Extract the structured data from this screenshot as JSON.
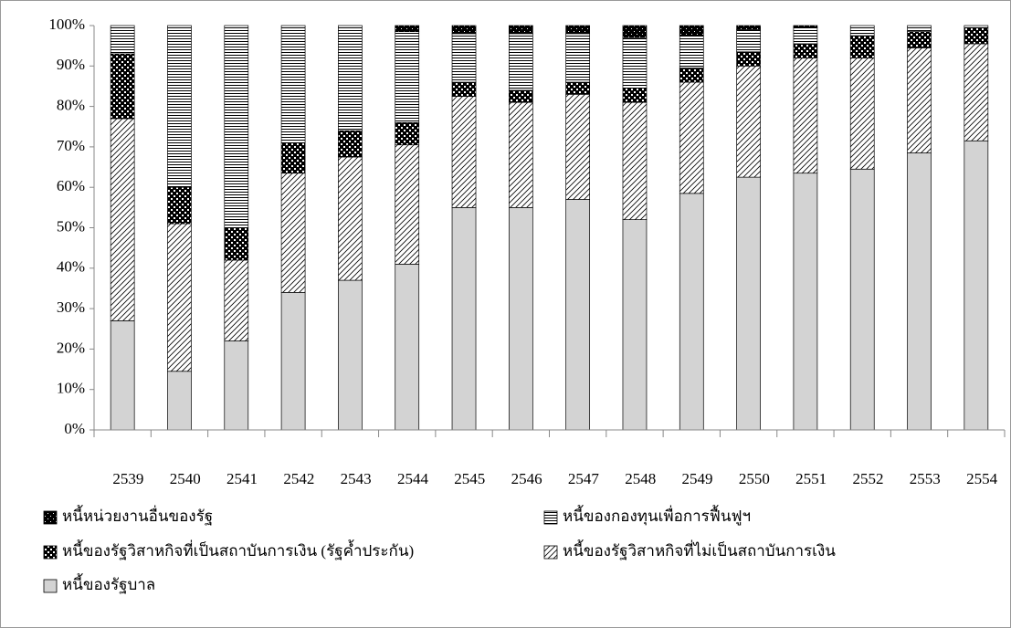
{
  "chart_data": {
    "type": "stacked-bar",
    "categories": [
      "2539",
      "2540",
      "2541",
      "2542",
      "2543",
      "2544",
      "2545",
      "2546",
      "2547",
      "2548",
      "2549",
      "2550",
      "2551",
      "2552",
      "2553",
      "2554"
    ],
    "series": [
      {
        "name": "หนี้ของรัฐบาล",
        "color": "#d3d3d3",
        "pattern": "solid",
        "values": [
          27,
          14.5,
          22,
          34,
          37,
          41,
          55,
          55,
          57,
          52,
          58.5,
          62.5,
          63.5,
          64.5,
          68.5,
          71.5
        ]
      },
      {
        "name": "หนี้ของรัฐวิสาหกิจที่ไม่เป็นสถาบันการเงิน",
        "color": "#000000",
        "pattern": "diagonal",
        "values": [
          50,
          36.5,
          20,
          29.5,
          30.5,
          29.5,
          27.5,
          26,
          26,
          29,
          27.5,
          27.5,
          28.5,
          27.5,
          26,
          24
        ]
      },
      {
        "name": "หนี้ของรัฐวิสาหกิจที่เป็นสถาบันการเงิน (รัฐค้ำประกัน)",
        "color": "#000000",
        "pattern": "checker",
        "values": [
          16,
          9,
          8,
          7.5,
          6.5,
          5.5,
          3.5,
          3,
          3,
          3.5,
          3.5,
          3.5,
          3.5,
          5.5,
          4,
          4
        ]
      },
      {
        "name": "หนี้ของกองทุนเพื่อการฟื้นฟูฯ",
        "color": "#000000",
        "pattern": "horizontal",
        "values": [
          7,
          40,
          50,
          29,
          26,
          22.5,
          12,
          14,
          12,
          12.5,
          8,
          5.5,
          4,
          2.5,
          1.5,
          0.5
        ]
      },
      {
        "name": "หนี้หน่วยงานอื่นของรัฐ",
        "color": "#000000",
        "pattern": "dense",
        "values": [
          0,
          0,
          0,
          0,
          0,
          1.5,
          2,
          2,
          2,
          3,
          2.5,
          1,
          0.5,
          0,
          0,
          0
        ]
      }
    ],
    "ylim": [
      0,
      100
    ],
    "yticks": [
      {
        "value": 0,
        "label": "0%"
      },
      {
        "value": 10,
        "label": "10%"
      },
      {
        "value": 20,
        "label": "20%"
      },
      {
        "value": 30,
        "label": "30%"
      },
      {
        "value": 40,
        "label": "40%"
      },
      {
        "value": 50,
        "label": "50%"
      },
      {
        "value": 60,
        "label": "60%"
      },
      {
        "value": 70,
        "label": "70%"
      },
      {
        "value": 80,
        "label": "80%"
      },
      {
        "value": 90,
        "label": "90%"
      },
      {
        "value": 100,
        "label": "100%"
      }
    ]
  }
}
